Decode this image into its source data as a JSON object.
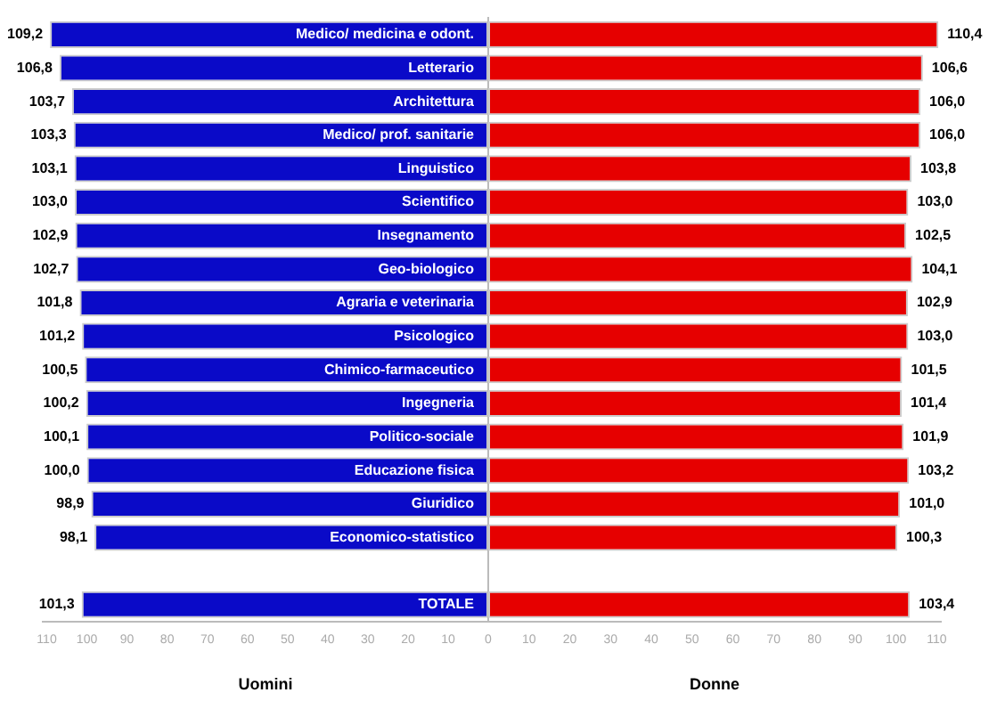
{
  "chart_data": [
    {
      "type": "bar",
      "orientation": "horizontal",
      "xlabel": "Uomini",
      "categories": [
        "Medico/ medicina e odont.",
        "Letterario",
        "Architettura",
        "Medico/ prof. sanitarie",
        "Linguistico",
        "Scientifico",
        "Insegnamento",
        "Geo-biologico",
        "Agraria e veterinaria",
        "Psicologico",
        "Chimico-farmaceutico",
        "Ingegneria",
        "Politico-sociale",
        "Educazione fisica",
        "Giuridico",
        "Economico-statistico",
        null,
        "TOTALE"
      ],
      "values": [
        109.2,
        106.8,
        103.7,
        103.3,
        103.1,
        103.0,
        102.9,
        102.7,
        101.8,
        101.2,
        100.5,
        100.2,
        100.1,
        100.0,
        98.9,
        98.1,
        null,
        101.3
      ],
      "value_labels": [
        "109,2",
        "106,8",
        "103,7",
        "103,3",
        "103,1",
        "103,0",
        "102,9",
        "102,7",
        "101,8",
        "101,2",
        "100,5",
        "100,2",
        "100,1",
        "100,0",
        "98,9",
        "98,1",
        null,
        "101,3"
      ],
      "color": "#0a0ac8",
      "xlim": [
        111,
        0
      ],
      "xticks": [
        110,
        100,
        90,
        80,
        70,
        60,
        50,
        40,
        30,
        20,
        10,
        0
      ]
    },
    {
      "type": "bar",
      "orientation": "horizontal",
      "xlabel": "Donne",
      "categories": [
        null,
        null,
        null,
        null,
        null,
        null,
        null,
        null,
        null,
        null,
        null,
        null,
        null,
        null,
        null,
        null,
        null,
        null
      ],
      "values": [
        110.4,
        106.6,
        106.0,
        106.0,
        103.8,
        103.0,
        102.5,
        104.1,
        102.9,
        103.0,
        101.5,
        101.4,
        101.9,
        103.2,
        101.0,
        100.3,
        null,
        103.4
      ],
      "value_labels": [
        "110,4",
        "106,6",
        "106,0",
        "106,0",
        "103,8",
        "103,0",
        "102,5",
        "104,1",
        "102,9",
        "103,0",
        "101,5",
        "101,4",
        "101,9",
        "103,2",
        "101,0",
        "100,3",
        null,
        "103,4"
      ],
      "color": "#e60000",
      "xlim": [
        0,
        111
      ],
      "xticks": [
        10,
        20,
        30,
        40,
        50,
        60,
        70,
        80,
        90,
        100,
        110
      ]
    }
  ]
}
